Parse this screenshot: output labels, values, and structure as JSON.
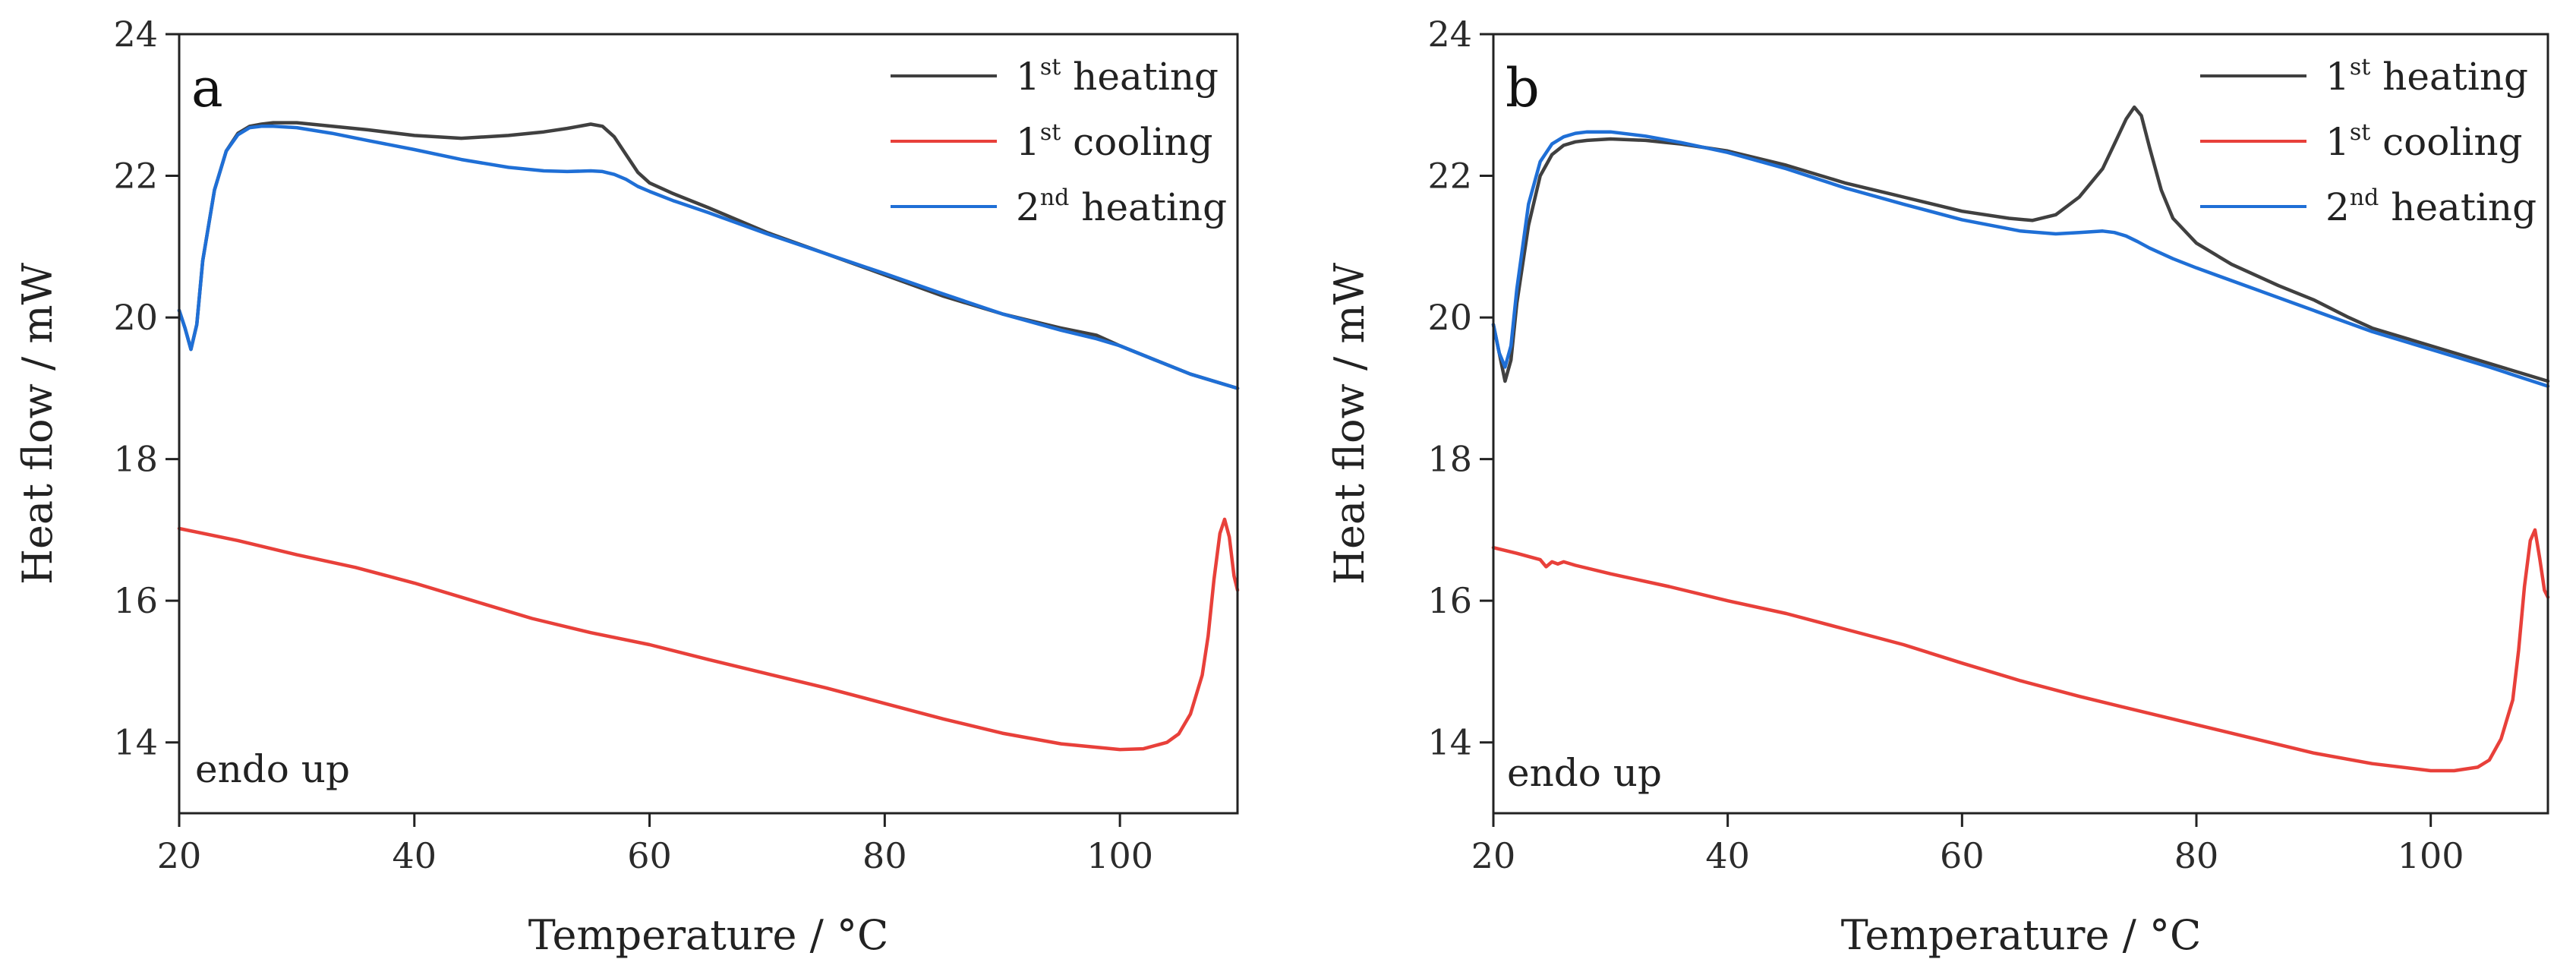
{
  "chart_data": [
    {
      "type": "line",
      "panel_label": "a",
      "xlabel": "Temperature / °C",
      "ylabel": "Heat flow / mW",
      "xlim": [
        20,
        110
      ],
      "ylim": [
        13,
        24
      ],
      "xticks": [
        20,
        40,
        60,
        80,
        100
      ],
      "yticks": [
        14,
        16,
        18,
        20,
        22,
        24
      ],
      "xtick_labels": [
        "20",
        "40",
        "60",
        "80",
        "100"
      ],
      "ytick_labels": [
        "14",
        "16",
        "18",
        "20",
        "22",
        "24"
      ],
      "grid": false,
      "legend_position": "top-right",
      "annotation": "endo up",
      "series": [
        {
          "name": "1st heating",
          "label_base": "1",
          "label_sup": "st",
          "label_rest": " heating",
          "color": "#404040",
          "x": [
            20,
            20.5,
            21,
            21.5,
            22,
            23,
            24,
            25,
            26,
            27,
            28,
            30,
            33,
            36,
            40,
            44,
            48,
            51,
            53,
            55,
            56,
            57,
            58,
            59,
            60,
            62,
            65,
            70,
            75,
            80,
            85,
            90,
            95,
            98,
            100,
            103,
            106,
            110
          ],
          "values": [
            20.1,
            19.85,
            19.55,
            19.9,
            20.8,
            21.8,
            22.35,
            22.6,
            22.7,
            22.73,
            22.75,
            22.75,
            22.7,
            22.65,
            22.57,
            22.53,
            22.57,
            22.62,
            22.67,
            22.73,
            22.7,
            22.55,
            22.3,
            22.05,
            21.9,
            21.75,
            21.55,
            21.2,
            20.9,
            20.6,
            20.3,
            20.05,
            19.85,
            19.75,
            19.6,
            19.4,
            19.2,
            19.0
          ]
        },
        {
          "name": "1st cooling",
          "label_base": "1",
          "label_sup": "st",
          "label_rest": " cooling",
          "color": "#e8403a",
          "x": [
            20,
            25,
            30,
            35,
            40,
            45,
            50,
            55,
            60,
            65,
            70,
            75,
            80,
            85,
            90,
            95,
            100,
            102,
            104,
            105,
            106,
            107,
            107.5,
            108,
            108.5,
            108.9,
            109.3,
            109.7,
            110
          ],
          "values": [
            17.02,
            16.85,
            16.65,
            16.47,
            16.25,
            16.0,
            15.75,
            15.55,
            15.38,
            15.17,
            14.97,
            14.77,
            14.55,
            14.33,
            14.13,
            13.98,
            13.9,
            13.91,
            14.0,
            14.12,
            14.4,
            14.95,
            15.5,
            16.3,
            16.95,
            17.15,
            16.9,
            16.35,
            16.15
          ]
        },
        {
          "name": "2nd heating",
          "label_base": "2",
          "label_sup": "nd",
          "label_rest": " heating",
          "color": "#1f6fd6",
          "x": [
            20,
            20.5,
            21,
            21.5,
            22,
            23,
            24,
            25,
            26,
            27,
            28,
            30,
            33,
            36,
            40,
            44,
            48,
            51,
            53,
            55,
            56,
            57,
            58,
            59,
            60,
            62,
            65,
            70,
            75,
            80,
            85,
            90,
            95,
            98,
            100,
            103,
            106,
            110
          ],
          "values": [
            20.1,
            19.85,
            19.55,
            19.9,
            20.8,
            21.8,
            22.35,
            22.58,
            22.68,
            22.7,
            22.7,
            22.68,
            22.6,
            22.5,
            22.37,
            22.23,
            22.12,
            22.07,
            22.06,
            22.07,
            22.06,
            22.02,
            21.95,
            21.85,
            21.78,
            21.65,
            21.48,
            21.18,
            20.9,
            20.62,
            20.33,
            20.05,
            19.82,
            19.7,
            19.6,
            19.4,
            19.2,
            19.0
          ]
        }
      ]
    },
    {
      "type": "line",
      "panel_label": "b",
      "xlabel": "Temperature / °C",
      "ylabel": "Heat flow / mW",
      "xlim": [
        20,
        110
      ],
      "ylim": [
        13,
        24
      ],
      "xticks": [
        20,
        40,
        60,
        80,
        100
      ],
      "yticks": [
        14,
        16,
        18,
        20,
        22,
        24
      ],
      "xtick_labels": [
        "20",
        "40",
        "60",
        "80",
        "100"
      ],
      "ytick_labels": [
        "14",
        "16",
        "18",
        "20",
        "22",
        "24"
      ],
      "grid": false,
      "legend_position": "top-right",
      "annotation": "endo up",
      "series": [
        {
          "name": "1st heating",
          "label_base": "1",
          "label_sup": "st",
          "label_rest": " heating",
          "color": "#404040",
          "x": [
            20,
            20.5,
            21,
            21.5,
            22,
            23,
            24,
            25,
            26,
            27,
            28,
            30,
            33,
            36,
            40,
            45,
            50,
            55,
            60,
            64,
            66,
            68,
            70,
            72,
            73,
            74,
            74.7,
            75.3,
            76,
            77,
            78,
            80,
            83,
            87,
            90,
            93,
            95,
            100,
            105,
            110
          ],
          "values": [
            19.9,
            19.5,
            19.1,
            19.4,
            20.2,
            21.3,
            22.0,
            22.3,
            22.43,
            22.48,
            22.5,
            22.52,
            22.5,
            22.45,
            22.35,
            22.15,
            21.9,
            21.7,
            21.5,
            21.4,
            21.37,
            21.45,
            21.7,
            22.1,
            22.45,
            22.8,
            22.97,
            22.85,
            22.4,
            21.8,
            21.4,
            21.05,
            20.75,
            20.45,
            20.25,
            20.0,
            19.85,
            19.6,
            19.35,
            19.1
          ]
        },
        {
          "name": "1st cooling",
          "label_base": "1",
          "label_sup": "st",
          "label_rest": " cooling",
          "color": "#e8403a",
          "x": [
            20,
            22,
            24,
            24.5,
            25,
            25.5,
            26,
            27,
            30,
            35,
            40,
            45,
            50,
            55,
            60,
            65,
            70,
            75,
            80,
            85,
            90,
            95,
            100,
            102,
            104,
            105,
            106,
            107,
            107.5,
            108,
            108.5,
            108.9,
            109.3,
            109.7,
            110
          ],
          "values": [
            16.75,
            16.67,
            16.58,
            16.48,
            16.55,
            16.52,
            16.55,
            16.5,
            16.38,
            16.2,
            16.0,
            15.82,
            15.6,
            15.38,
            15.12,
            14.87,
            14.65,
            14.45,
            14.25,
            14.05,
            13.85,
            13.7,
            13.6,
            13.6,
            13.65,
            13.75,
            14.05,
            14.6,
            15.3,
            16.2,
            16.85,
            17.0,
            16.6,
            16.15,
            16.05
          ]
        },
        {
          "name": "2nd heating",
          "label_base": "2",
          "label_sup": "nd",
          "label_rest": " heating",
          "color": "#1f6fd6",
          "x": [
            20,
            20.5,
            21,
            21.5,
            22,
            23,
            24,
            25,
            26,
            27,
            28,
            30,
            33,
            36,
            40,
            45,
            50,
            55,
            60,
            65,
            68,
            70,
            72,
            73,
            74,
            75,
            76,
            78,
            80,
            85,
            90,
            95,
            100,
            105,
            110
          ],
          "values": [
            19.9,
            19.5,
            19.3,
            19.6,
            20.4,
            21.6,
            22.2,
            22.45,
            22.55,
            22.6,
            22.62,
            22.62,
            22.56,
            22.47,
            22.33,
            22.1,
            21.83,
            21.6,
            21.38,
            21.22,
            21.18,
            21.2,
            21.22,
            21.2,
            21.15,
            21.07,
            20.98,
            20.83,
            20.7,
            20.4,
            20.1,
            19.8,
            19.55,
            19.3,
            19.03
          ]
        }
      ]
    }
  ]
}
